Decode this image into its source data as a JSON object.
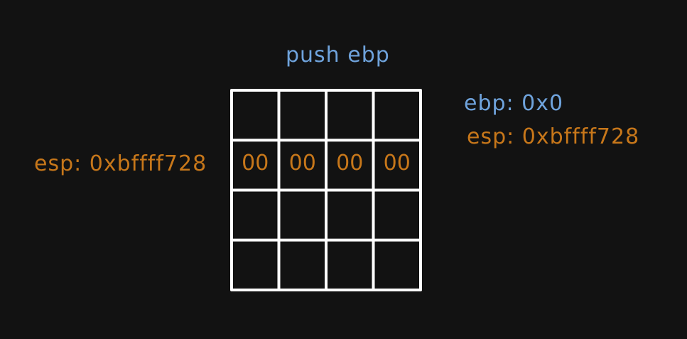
{
  "title": "push ebp",
  "registers": {
    "ebp": "ebp: 0x0",
    "esp": "esp: 0xbffff728"
  },
  "stack_pointer_label": "esp: 0xbffff728",
  "stack": {
    "rows": 4,
    "cols": 4,
    "highlighted_row": 1,
    "cells": [
      [
        "",
        "",
        "",
        ""
      ],
      [
        "00",
        "00",
        "00",
        "00"
      ],
      [
        "",
        "",
        "",
        ""
      ],
      [
        "",
        "",
        "",
        ""
      ]
    ]
  },
  "colors": {
    "background": "#121212",
    "grid": "#ffffff",
    "register_ebp": "#6fa3dc",
    "register_esp": "#c7771a"
  }
}
